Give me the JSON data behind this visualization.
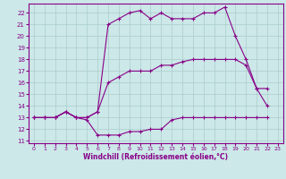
{
  "xlabel": "Windchill (Refroidissement éolien,°C)",
  "bg_color": "#cce8e8",
  "line_color": "#880088",
  "grid_color": "#aacccc",
  "xlim": [
    -0.5,
    23.5
  ],
  "ylim": [
    10.8,
    22.8
  ],
  "yticks": [
    11,
    12,
    13,
    14,
    15,
    16,
    17,
    18,
    19,
    20,
    21,
    22
  ],
  "xticks": [
    0,
    1,
    2,
    3,
    4,
    5,
    6,
    7,
    8,
    9,
    10,
    11,
    12,
    13,
    14,
    15,
    16,
    17,
    18,
    19,
    20,
    21,
    22,
    23
  ],
  "line1_x": [
    0,
    1,
    2,
    3,
    4,
    5,
    6,
    7,
    8,
    9,
    10,
    11,
    12,
    13,
    14,
    15,
    16,
    17,
    18,
    19,
    20,
    21,
    22
  ],
  "line1_y": [
    13.0,
    13.0,
    13.0,
    13.5,
    13.0,
    12.8,
    11.5,
    11.5,
    11.5,
    11.8,
    11.8,
    12.0,
    12.0,
    12.8,
    13.0,
    13.0,
    13.0,
    13.0,
    13.0,
    13.0,
    13.0,
    13.0,
    13.0
  ],
  "line2_x": [
    0,
    1,
    2,
    3,
    4,
    5,
    6,
    7,
    8,
    9,
    10,
    11,
    12,
    13,
    14,
    15,
    16,
    17,
    18,
    19,
    20,
    21,
    22
  ],
  "line2_y": [
    13.0,
    13.0,
    13.0,
    13.5,
    13.0,
    13.0,
    13.5,
    21.0,
    21.5,
    22.0,
    22.2,
    21.5,
    22.0,
    21.5,
    21.5,
    21.5,
    22.0,
    22.0,
    22.5,
    20.0,
    18.0,
    15.5,
    15.5
  ],
  "line3_x": [
    0,
    1,
    2,
    3,
    4,
    5,
    6,
    7,
    8,
    9,
    10,
    11,
    12,
    13,
    14,
    15,
    16,
    17,
    18,
    19,
    20,
    21,
    22
  ],
  "line3_y": [
    13.0,
    13.0,
    13.0,
    13.5,
    13.0,
    13.0,
    13.5,
    16.0,
    16.5,
    17.0,
    17.0,
    17.0,
    17.5,
    17.5,
    17.8,
    18.0,
    18.0,
    18.0,
    18.0,
    18.0,
    17.5,
    15.5,
    14.0
  ]
}
